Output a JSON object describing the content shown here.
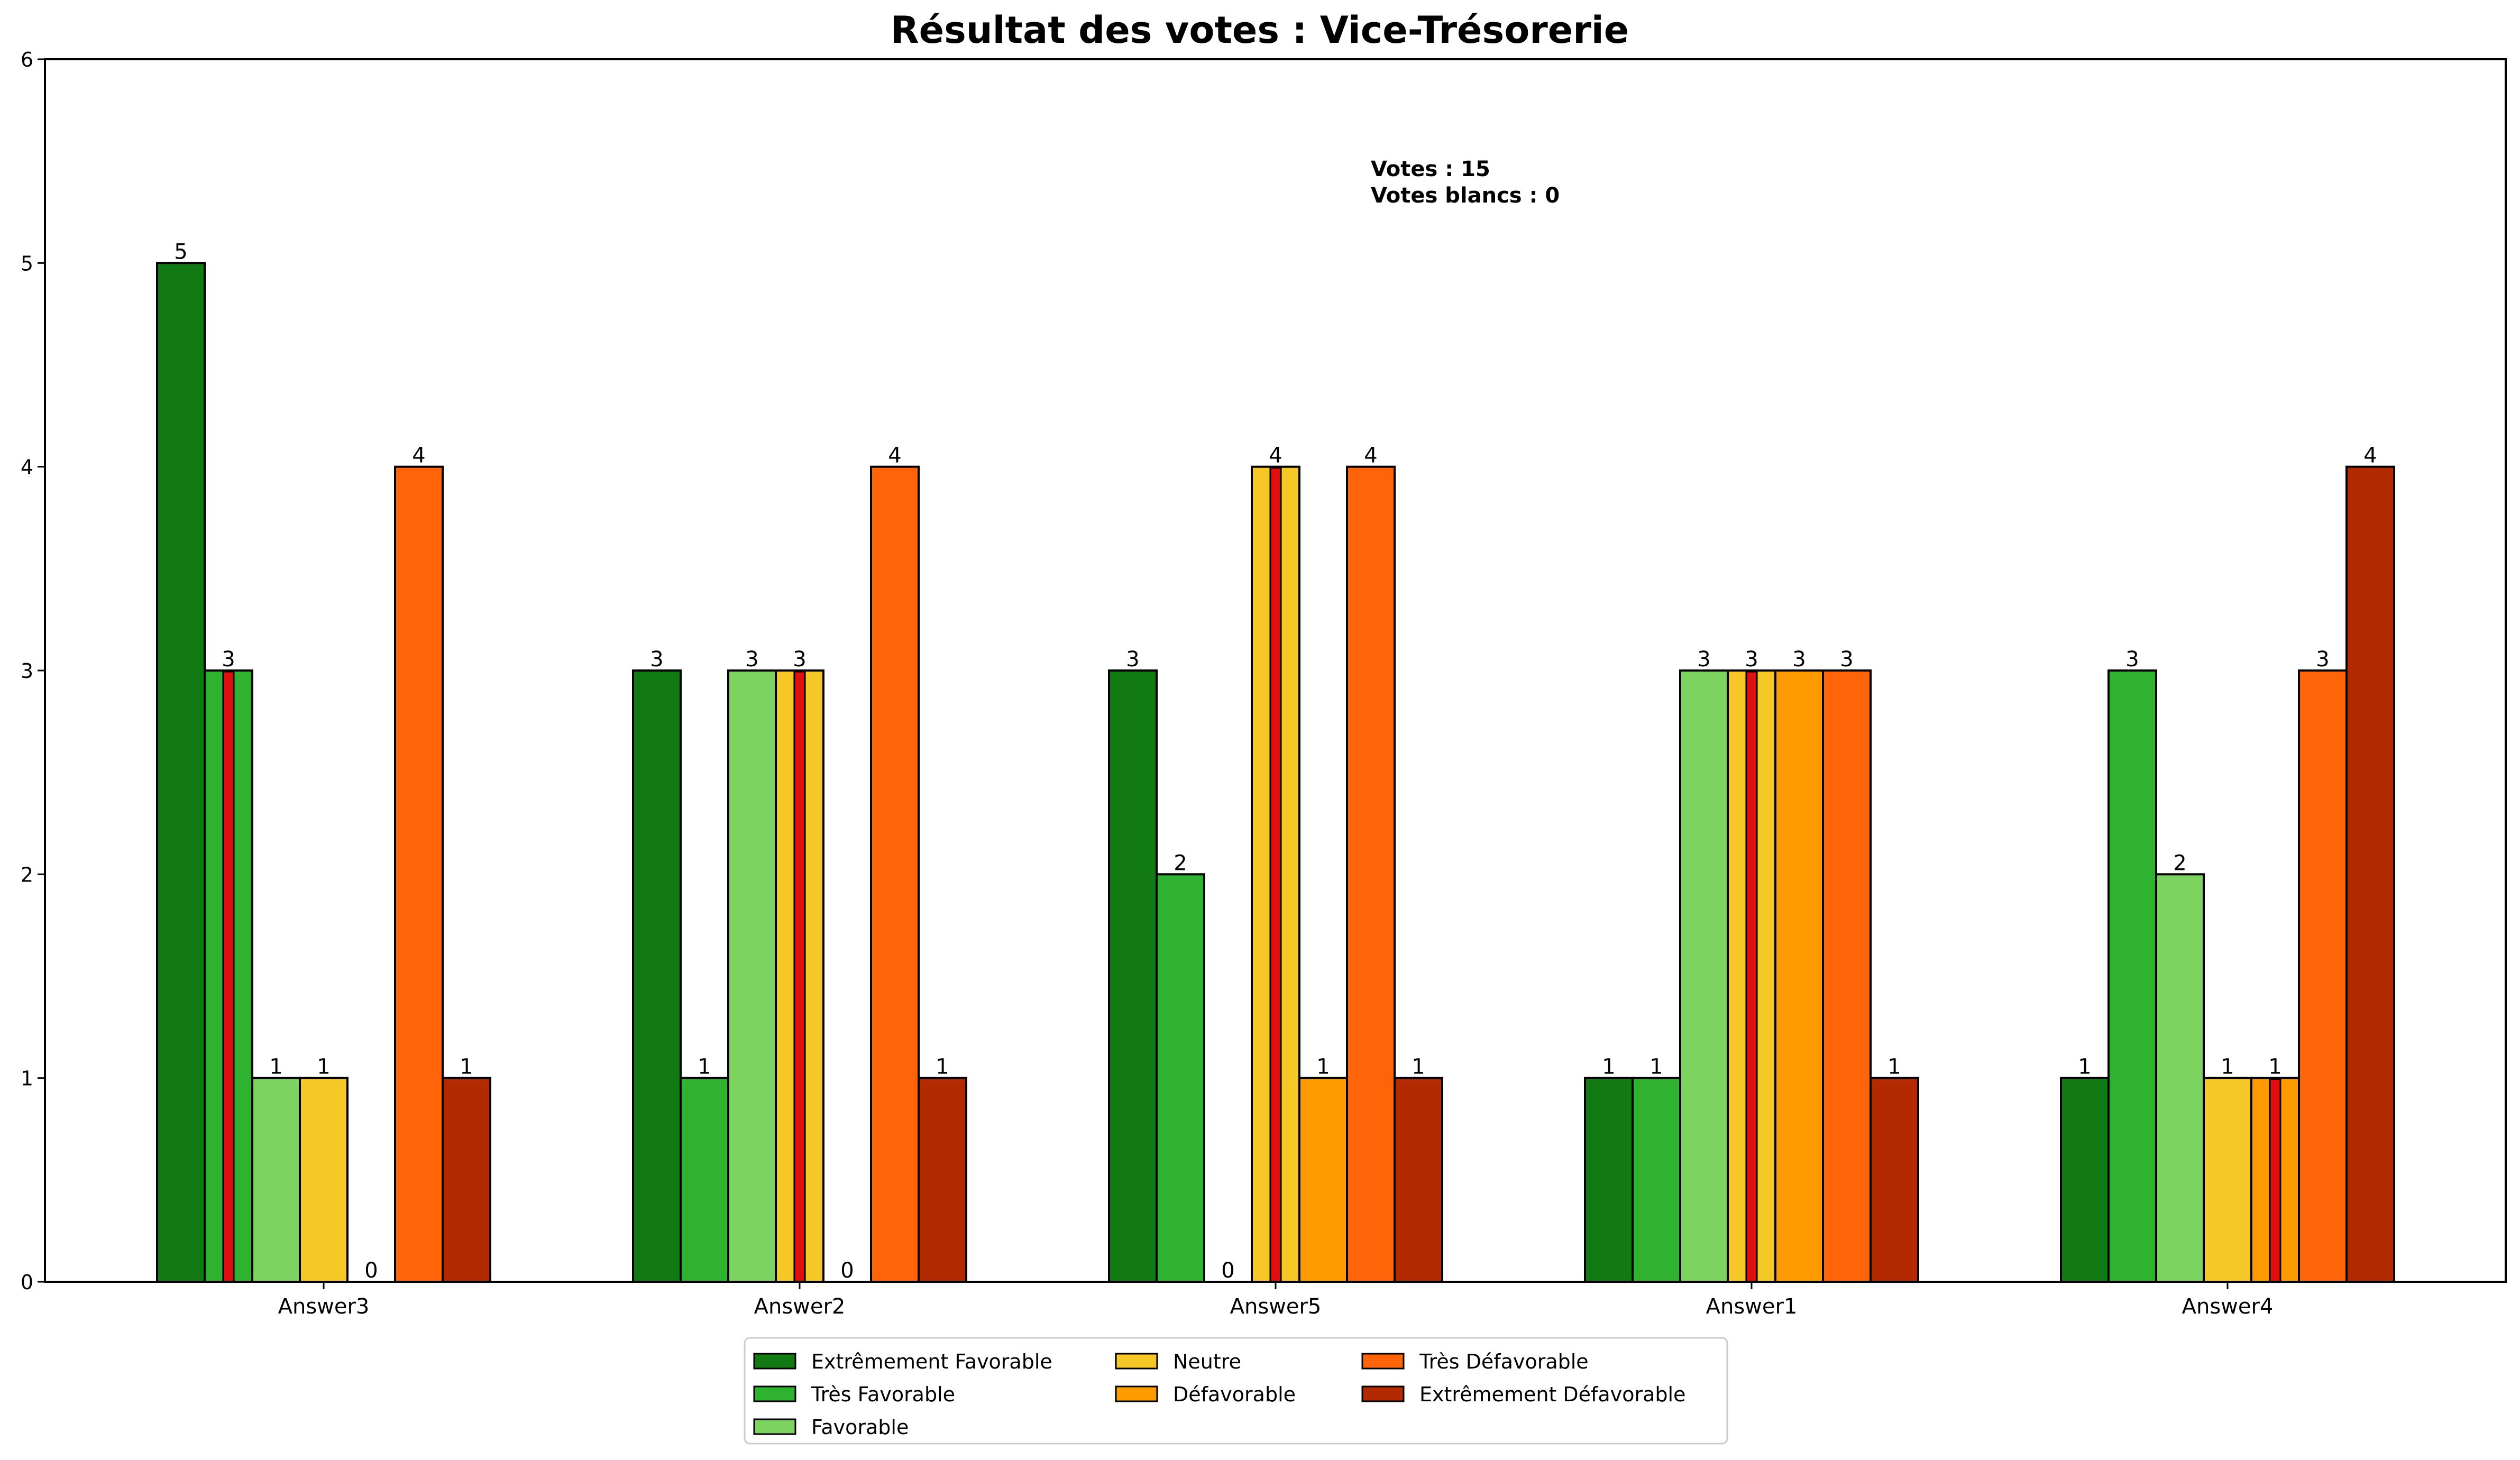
{
  "chart_data": {
    "type": "bar",
    "title": "Résultat des votes : Vice-Trésorerie",
    "xlabel": "",
    "ylabel": "",
    "ylim": [
      0,
      6
    ],
    "yticks": [
      "0",
      "1",
      "2",
      "3",
      "4",
      "5",
      "6"
    ],
    "categories": [
      "Answer3",
      "Answer2",
      "Answer5",
      "Answer1",
      "Answer4"
    ],
    "series": [
      {
        "name": "Extrêmement Favorable",
        "color": "#127a12",
        "values": [
          5,
          3,
          3,
          1,
          1
        ]
      },
      {
        "name": "Très Favorable",
        "color": "#2fb22f",
        "values": [
          3,
          1,
          2,
          1,
          3
        ]
      },
      {
        "name": "Favorable",
        "color": "#7dd35f",
        "values": [
          1,
          3,
          0,
          3,
          2
        ]
      },
      {
        "name": "Neutre",
        "color": "#f5c827",
        "values": [
          1,
          3,
          4,
          3,
          1
        ]
      },
      {
        "name": "Défavorable",
        "color": "#fe9b00",
        "values": [
          0,
          0,
          1,
          3,
          1
        ]
      },
      {
        "name": "Très Défavorable",
        "color": "#ff6508",
        "values": [
          4,
          4,
          4,
          3,
          3
        ]
      },
      {
        "name": "Extrêmement Défavorable",
        "color": "#b32a00",
        "values": [
          1,
          1,
          1,
          1,
          4
        ]
      }
    ],
    "median_marker_color": "#e01010",
    "median_markers": [
      {
        "category": "Answer3",
        "series": "Très Favorable"
      },
      {
        "category": "Answer2",
        "series": "Neutre"
      },
      {
        "category": "Answer5",
        "series": "Neutre"
      },
      {
        "category": "Answer1",
        "series": "Neutre"
      },
      {
        "category": "Answer4",
        "series": "Défavorable"
      }
    ],
    "annotation": {
      "votes": "Votes : 15",
      "blank_votes": "Votes blancs : 0"
    },
    "legend": {
      "placement": "bottom-center",
      "columns": 3
    },
    "grid": false
  }
}
